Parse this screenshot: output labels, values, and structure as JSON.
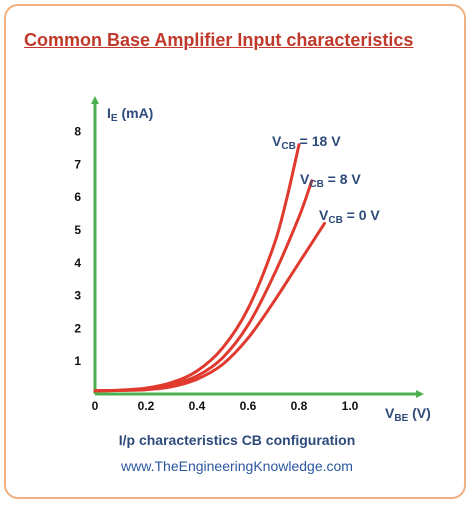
{
  "title": "Common Base Amplifier Input characteristics",
  "caption": "I/p characteristics CB configuration",
  "website": "www.TheEngineeringKnowledge.com",
  "colors": {
    "axis": "#4caf50",
    "curve": "#e03a2f",
    "title": "#c0392b",
    "text": "#2e4a7a"
  },
  "chart_data": {
    "type": "line",
    "xlabel": {
      "main": "V",
      "sub": "BE",
      "unit": " (V)"
    },
    "ylabel": {
      "main": "I",
      "sub": "E",
      "unit": " (mA)"
    },
    "xlim": [
      0,
      1.2
    ],
    "ylim": [
      0,
      9
    ],
    "xticks": [
      "0",
      "0.2",
      "0.4",
      "0.6",
      "0.8",
      "1.0"
    ],
    "yticks": [
      "1",
      "2",
      "3",
      "4",
      "5",
      "6",
      "7",
      "8"
    ],
    "grid": false,
    "series": [
      {
        "name_main": "V",
        "name_sub": "CB",
        "name_val": " = 18 V",
        "points": [
          [
            0,
            0.1
          ],
          [
            0.1,
            0.12
          ],
          [
            0.2,
            0.18
          ],
          [
            0.3,
            0.35
          ],
          [
            0.4,
            0.7
          ],
          [
            0.5,
            1.4
          ],
          [
            0.6,
            2.6
          ],
          [
            0.7,
            4.5
          ],
          [
            0.75,
            5.9
          ],
          [
            0.8,
            7.6
          ]
        ]
      },
      {
        "name_main": "V",
        "name_sub": "CB",
        "name_val": " = 8 V",
        "points": [
          [
            0,
            0.1
          ],
          [
            0.1,
            0.11
          ],
          [
            0.2,
            0.15
          ],
          [
            0.3,
            0.28
          ],
          [
            0.4,
            0.55
          ],
          [
            0.5,
            1.1
          ],
          [
            0.6,
            2.1
          ],
          [
            0.7,
            3.6
          ],
          [
            0.8,
            5.4
          ],
          [
            0.85,
            6.5
          ]
        ]
      },
      {
        "name_main": "V",
        "name_sub": "CB",
        "name_val": " = 0 V",
        "points": [
          [
            0,
            0.1
          ],
          [
            0.1,
            0.11
          ],
          [
            0.2,
            0.13
          ],
          [
            0.3,
            0.22
          ],
          [
            0.4,
            0.45
          ],
          [
            0.5,
            0.9
          ],
          [
            0.6,
            1.7
          ],
          [
            0.7,
            2.8
          ],
          [
            0.8,
            4.0
          ],
          [
            0.9,
            5.2
          ]
        ]
      }
    ]
  }
}
